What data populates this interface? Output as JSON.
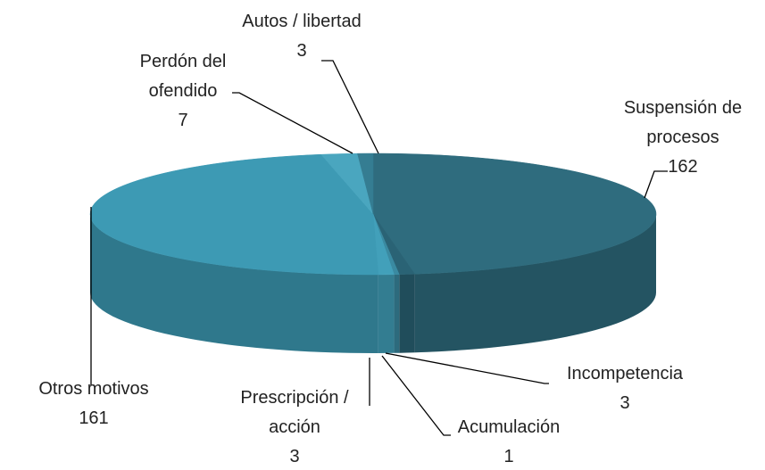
{
  "chart_data": {
    "type": "pie3d",
    "categories": [
      "Suspensión de procesos",
      "Incompetencia",
      "Acumulación",
      "Prescripción / acción",
      "Otros motivos",
      "Perdón del ofendido",
      "Autos / libertad"
    ],
    "values": [
      162,
      3,
      1,
      3,
      161,
      7,
      3
    ],
    "colors": [
      "#2f6c7e",
      "#2a6375",
      "#3a8aa1",
      "#42a0ba",
      "#3d9ab4",
      "#4aa6bf",
      "#357d92"
    ]
  }
}
